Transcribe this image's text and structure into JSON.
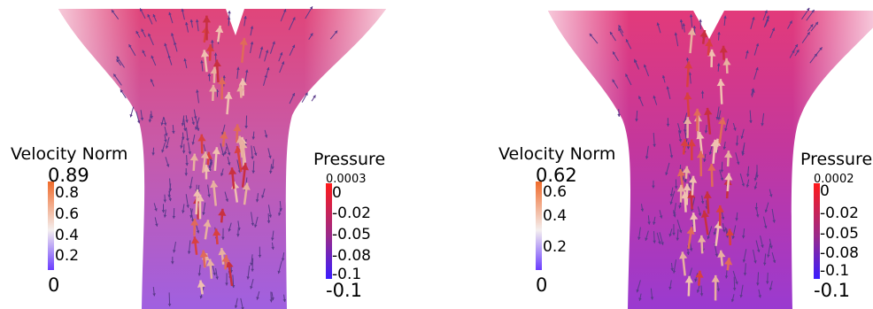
{
  "panels": [
    {
      "velocity": {
        "title": "Velocity Norm",
        "max": "0.89",
        "ticks": [
          "0.8",
          "0.6",
          "0.4",
          "0.2"
        ],
        "min": "0"
      },
      "pressure": {
        "title": "Pressure",
        "max": "0.0003",
        "ticks": [
          "0",
          "-0.02",
          "-0.05",
          "-0.08",
          "-0.1"
        ],
        "min": "-0.1"
      }
    },
    {
      "velocity": {
        "title": "Velocity Norm",
        "max": "0.62",
        "ticks": [
          "0.6",
          "0.4",
          "0.2"
        ],
        "min": "0"
      },
      "pressure": {
        "title": "Pressure",
        "max": "0.0002",
        "ticks": [
          "0",
          "-0.02",
          "-0.05",
          "-0.08",
          "-0.1"
        ],
        "min": "-0.1"
      }
    }
  ],
  "colors": {
    "velocity_low": "#6a3cff",
    "velocity_mid": "#f4efef",
    "velocity_high": "#f06a2a",
    "pressure_low": "#3a1dff",
    "pressure_mid": "#9a2a8a",
    "pressure_high": "#ff1a1a"
  }
}
